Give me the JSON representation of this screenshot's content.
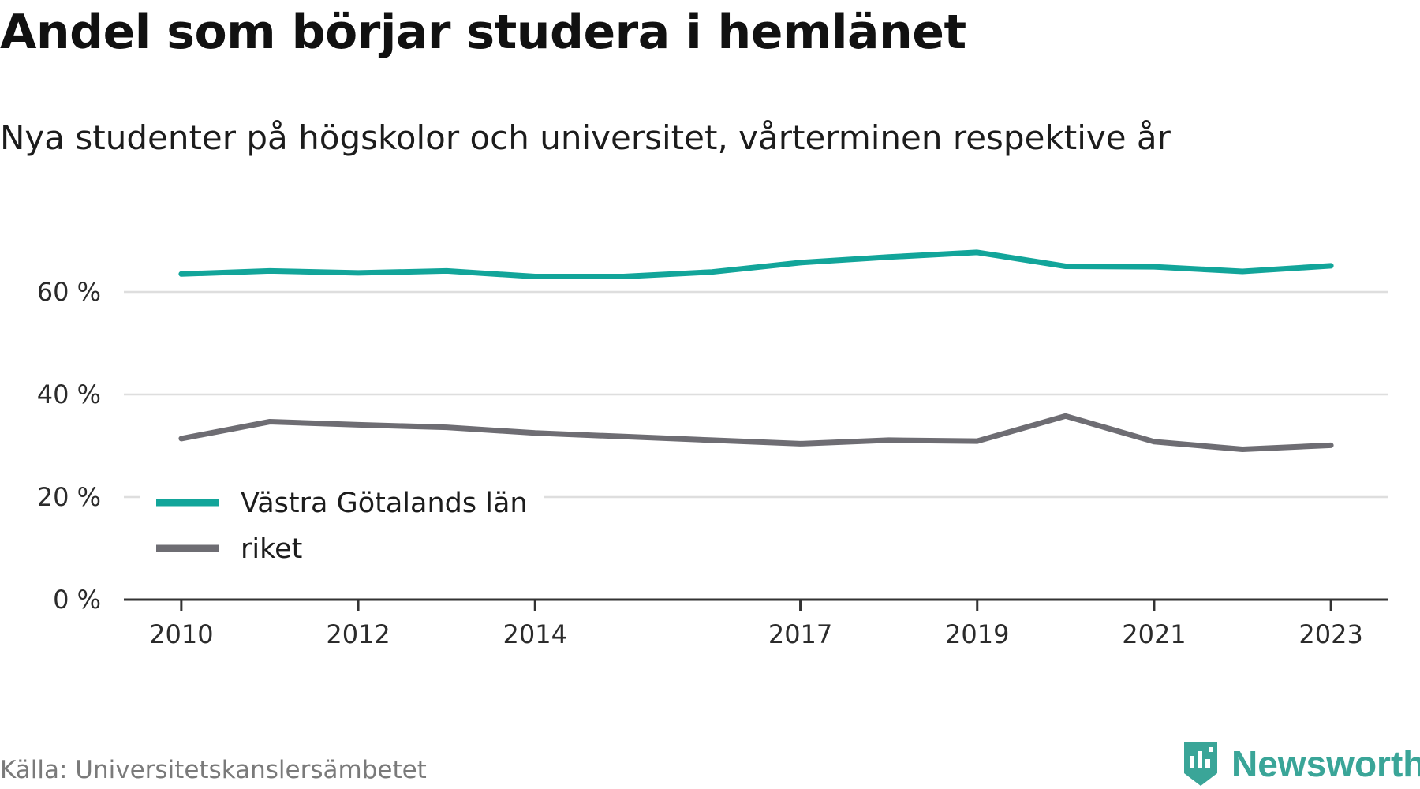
{
  "header": {
    "title": "Andel som börjar studera i hemlänet",
    "subtitle": "Nya studenter på högskolor och universitet, vårterminen respektive år"
  },
  "footer": {
    "source": "Källa: Universitetskanslersämbetet",
    "brand": "Newsworthy",
    "brand_icon": "newsworthy-logo-icon"
  },
  "colors": {
    "series_vg": "#12a59a",
    "series_riket": "#6e6d73",
    "grid": "#dedede",
    "axis": "#333333",
    "brand": "#3aa598"
  },
  "chart_data": {
    "type": "line",
    "x": [
      2010,
      2011,
      2012,
      2013,
      2014,
      2015,
      2016,
      2017,
      2018,
      2019,
      2020,
      2021,
      2022,
      2023
    ],
    "x_tick_labels": [
      "2010",
      "2012",
      "2014",
      "2017",
      "2019",
      "2021",
      "2023"
    ],
    "x_ticks": [
      2010,
      2012,
      2014,
      2017,
      2019,
      2021,
      2023
    ],
    "xlim": [
      2009.35,
      2023.65
    ],
    "y_ticks": [
      0,
      20,
      40,
      60
    ],
    "y_tick_labels": [
      "0 %",
      "20 %",
      "40 %",
      "60 %"
    ],
    "ylim": [
      0,
      70
    ],
    "grid": true,
    "legend_position": "bottom-left",
    "series": [
      {
        "name": "Västra Götalands län",
        "color": "#12a59a",
        "values": [
          63.5,
          64.1,
          63.7,
          64.1,
          63.0,
          63.0,
          63.9,
          65.7,
          66.8,
          67.7,
          65.0,
          64.9,
          64.0,
          65.1
        ]
      },
      {
        "name": "riket",
        "color": "#6e6d73",
        "values": [
          31.4,
          34.7,
          34.1,
          33.6,
          32.5,
          31.8,
          31.1,
          30.4,
          31.1,
          30.9,
          35.8,
          30.8,
          29.3,
          30.1
        ]
      }
    ]
  }
}
